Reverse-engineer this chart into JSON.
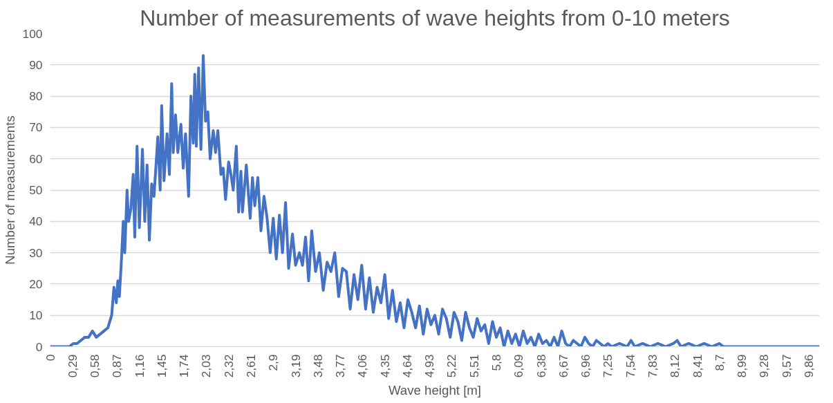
{
  "chart_data": {
    "type": "line",
    "title": "Number of measurements of wave heights from 0-10 meters",
    "xlabel": "Wave height [m]",
    "ylabel": "Number of measurements",
    "x": [
      0,
      0.25,
      0.3,
      0.35,
      0.4,
      0.45,
      0.5,
      0.55,
      0.6,
      0.65,
      0.7,
      0.75,
      0.8,
      0.83,
      0.86,
      0.88,
      0.9,
      0.93,
      0.95,
      0.97,
      1.0,
      1.02,
      1.05,
      1.08,
      1.1,
      1.13,
      1.16,
      1.2,
      1.23,
      1.26,
      1.29,
      1.32,
      1.35,
      1.4,
      1.43,
      1.45,
      1.48,
      1.52,
      1.55,
      1.58,
      1.6,
      1.63,
      1.66,
      1.7,
      1.73,
      1.76,
      1.8,
      1.83,
      1.86,
      1.88,
      1.9,
      1.93,
      1.96,
      1.99,
      2.02,
      2.05,
      2.08,
      2.12,
      2.15,
      2.18,
      2.22,
      2.25,
      2.28,
      2.32,
      2.35,
      2.38,
      2.42,
      2.45,
      2.48,
      2.5,
      2.55,
      2.6,
      2.63,
      2.66,
      2.7,
      2.74,
      2.78,
      2.82,
      2.86,
      2.9,
      2.94,
      2.98,
      3.02,
      3.06,
      3.1,
      3.15,
      3.19,
      3.24,
      3.28,
      3.32,
      3.36,
      3.4,
      3.45,
      3.5,
      3.55,
      3.6,
      3.65,
      3.7,
      3.75,
      3.8,
      3.85,
      3.9,
      3.95,
      4.0,
      4.05,
      4.1,
      4.15,
      4.2,
      4.25,
      4.3,
      4.35,
      4.4,
      4.45,
      4.5,
      4.55,
      4.6,
      4.65,
      4.7,
      4.75,
      4.8,
      4.85,
      4.9,
      4.95,
      5.0,
      5.05,
      5.1,
      5.15,
      5.2,
      5.25,
      5.3,
      5.35,
      5.4,
      5.45,
      5.5,
      5.55,
      5.6,
      5.65,
      5.7,
      5.75,
      5.8,
      5.85,
      5.9,
      5.95,
      6.0,
      6.05,
      6.1,
      6.15,
      6.2,
      6.25,
      6.3,
      6.35,
      6.4,
      6.45,
      6.5,
      6.55,
      6.6,
      6.65,
      6.7,
      6.75,
      6.8,
      6.9,
      6.95,
      7.0,
      7.05,
      7.1,
      7.2,
      7.25,
      7.3,
      7.4,
      7.5,
      7.55,
      7.6,
      7.7,
      7.8,
      7.9,
      8.0,
      8.1,
      8.15,
      8.2,
      8.3,
      8.4,
      8.5,
      8.6,
      8.7,
      8.75,
      10.0
    ],
    "series": [
      {
        "color": "#4472c4",
        "values": [
          0,
          0,
          1,
          1,
          2,
          3,
          3,
          5,
          3,
          4,
          5,
          6,
          10,
          19,
          14,
          21,
          16,
          29,
          40,
          30,
          50,
          40,
          44,
          55,
          35,
          64,
          38,
          63,
          40,
          58,
          34,
          52,
          48,
          67,
          50,
          77,
          53,
          68,
          55,
          84,
          62,
          74,
          62,
          71,
          57,
          68,
          48,
          80,
          65,
          87,
          64,
          89,
          63,
          93,
          72,
          75,
          60,
          69,
          62,
          69,
          55,
          57,
          47,
          59,
          55,
          50,
          64,
          43,
          56,
          43,
          58,
          41,
          54,
          45,
          54,
          37,
          48,
          41,
          30,
          41,
          28,
          42,
          30,
          46,
          25,
          36,
          26,
          30,
          26,
          35,
          21,
          37,
          24,
          30,
          18,
          27,
          24,
          30,
          16,
          25,
          24,
          12,
          23,
          15,
          26,
          12,
          22,
          11,
          19,
          14,
          23,
          9,
          18,
          8,
          14,
          6,
          15,
          11,
          6,
          13,
          4,
          12,
          7,
          10,
          4,
          12,
          9,
          3,
          11,
          8,
          2,
          11,
          6,
          3,
          9,
          5,
          7,
          1,
          8,
          3,
          6,
          0,
          5,
          1,
          4,
          0,
          5,
          1,
          3,
          0,
          4,
          1,
          2,
          0,
          3,
          0,
          5,
          1,
          0,
          2,
          0,
          3,
          1,
          0,
          2,
          0,
          1,
          0,
          1,
          0,
          2,
          0,
          1,
          0,
          1,
          0,
          1,
          2,
          0,
          1,
          0,
          1,
          0,
          1,
          0,
          0
        ]
      }
    ],
    "xlim": [
      0,
      10
    ],
    "ylim": [
      0,
      100
    ],
    "yticks": [
      0,
      10,
      20,
      30,
      40,
      50,
      60,
      70,
      80,
      90,
      100
    ],
    "xticks": [
      0,
      {
        "value": 0.29,
        "label": "0,29"
      },
      {
        "value": 0.58,
        "label": "0,58"
      },
      {
        "value": 0.87,
        "label": "0,87"
      },
      {
        "value": 1.16,
        "label": "1,16"
      },
      {
        "value": 1.45,
        "label": "1,45"
      },
      {
        "value": 1.74,
        "label": "1,74"
      },
      {
        "value": 2.03,
        "label": "2,03"
      },
      {
        "value": 2.32,
        "label": "2,32"
      },
      {
        "value": 2.61,
        "label": "2,61"
      },
      {
        "value": 2.9,
        "label": "2,9"
      },
      {
        "value": 3.19,
        "label": "3,19"
      },
      {
        "value": 3.48,
        "label": "3,48"
      },
      {
        "value": 3.77,
        "label": "3,77"
      },
      {
        "value": 4.06,
        "label": "4,06"
      },
      {
        "value": 4.35,
        "label": "4,35"
      },
      {
        "value": 4.64,
        "label": "4,64"
      },
      {
        "value": 4.93,
        "label": "4,93"
      },
      {
        "value": 5.22,
        "label": "5,22"
      },
      {
        "value": 5.51,
        "label": "5,51"
      },
      {
        "value": 5.8,
        "label": "5,8"
      },
      {
        "value": 6.09,
        "label": "6,09"
      },
      {
        "value": 6.38,
        "label": "6,38"
      },
      {
        "value": 6.67,
        "label": "6,67"
      },
      {
        "value": 6.96,
        "label": "6,96"
      },
      {
        "value": 7.25,
        "label": "7,25"
      },
      {
        "value": 7.54,
        "label": "7,54"
      },
      {
        "value": 7.83,
        "label": "7,83"
      },
      {
        "value": 8.12,
        "label": "8,12"
      },
      {
        "value": 8.41,
        "label": "8,41"
      },
      {
        "value": 8.7,
        "label": "8,7"
      },
      {
        "value": 8.99,
        "label": "8,99"
      },
      {
        "value": 9.28,
        "label": "9,28"
      },
      {
        "value": 9.57,
        "label": "9,57"
      },
      {
        "value": 9.86,
        "label": "9,86"
      }
    ],
    "grid": "y",
    "marker": "none",
    "line_style": "solid"
  }
}
